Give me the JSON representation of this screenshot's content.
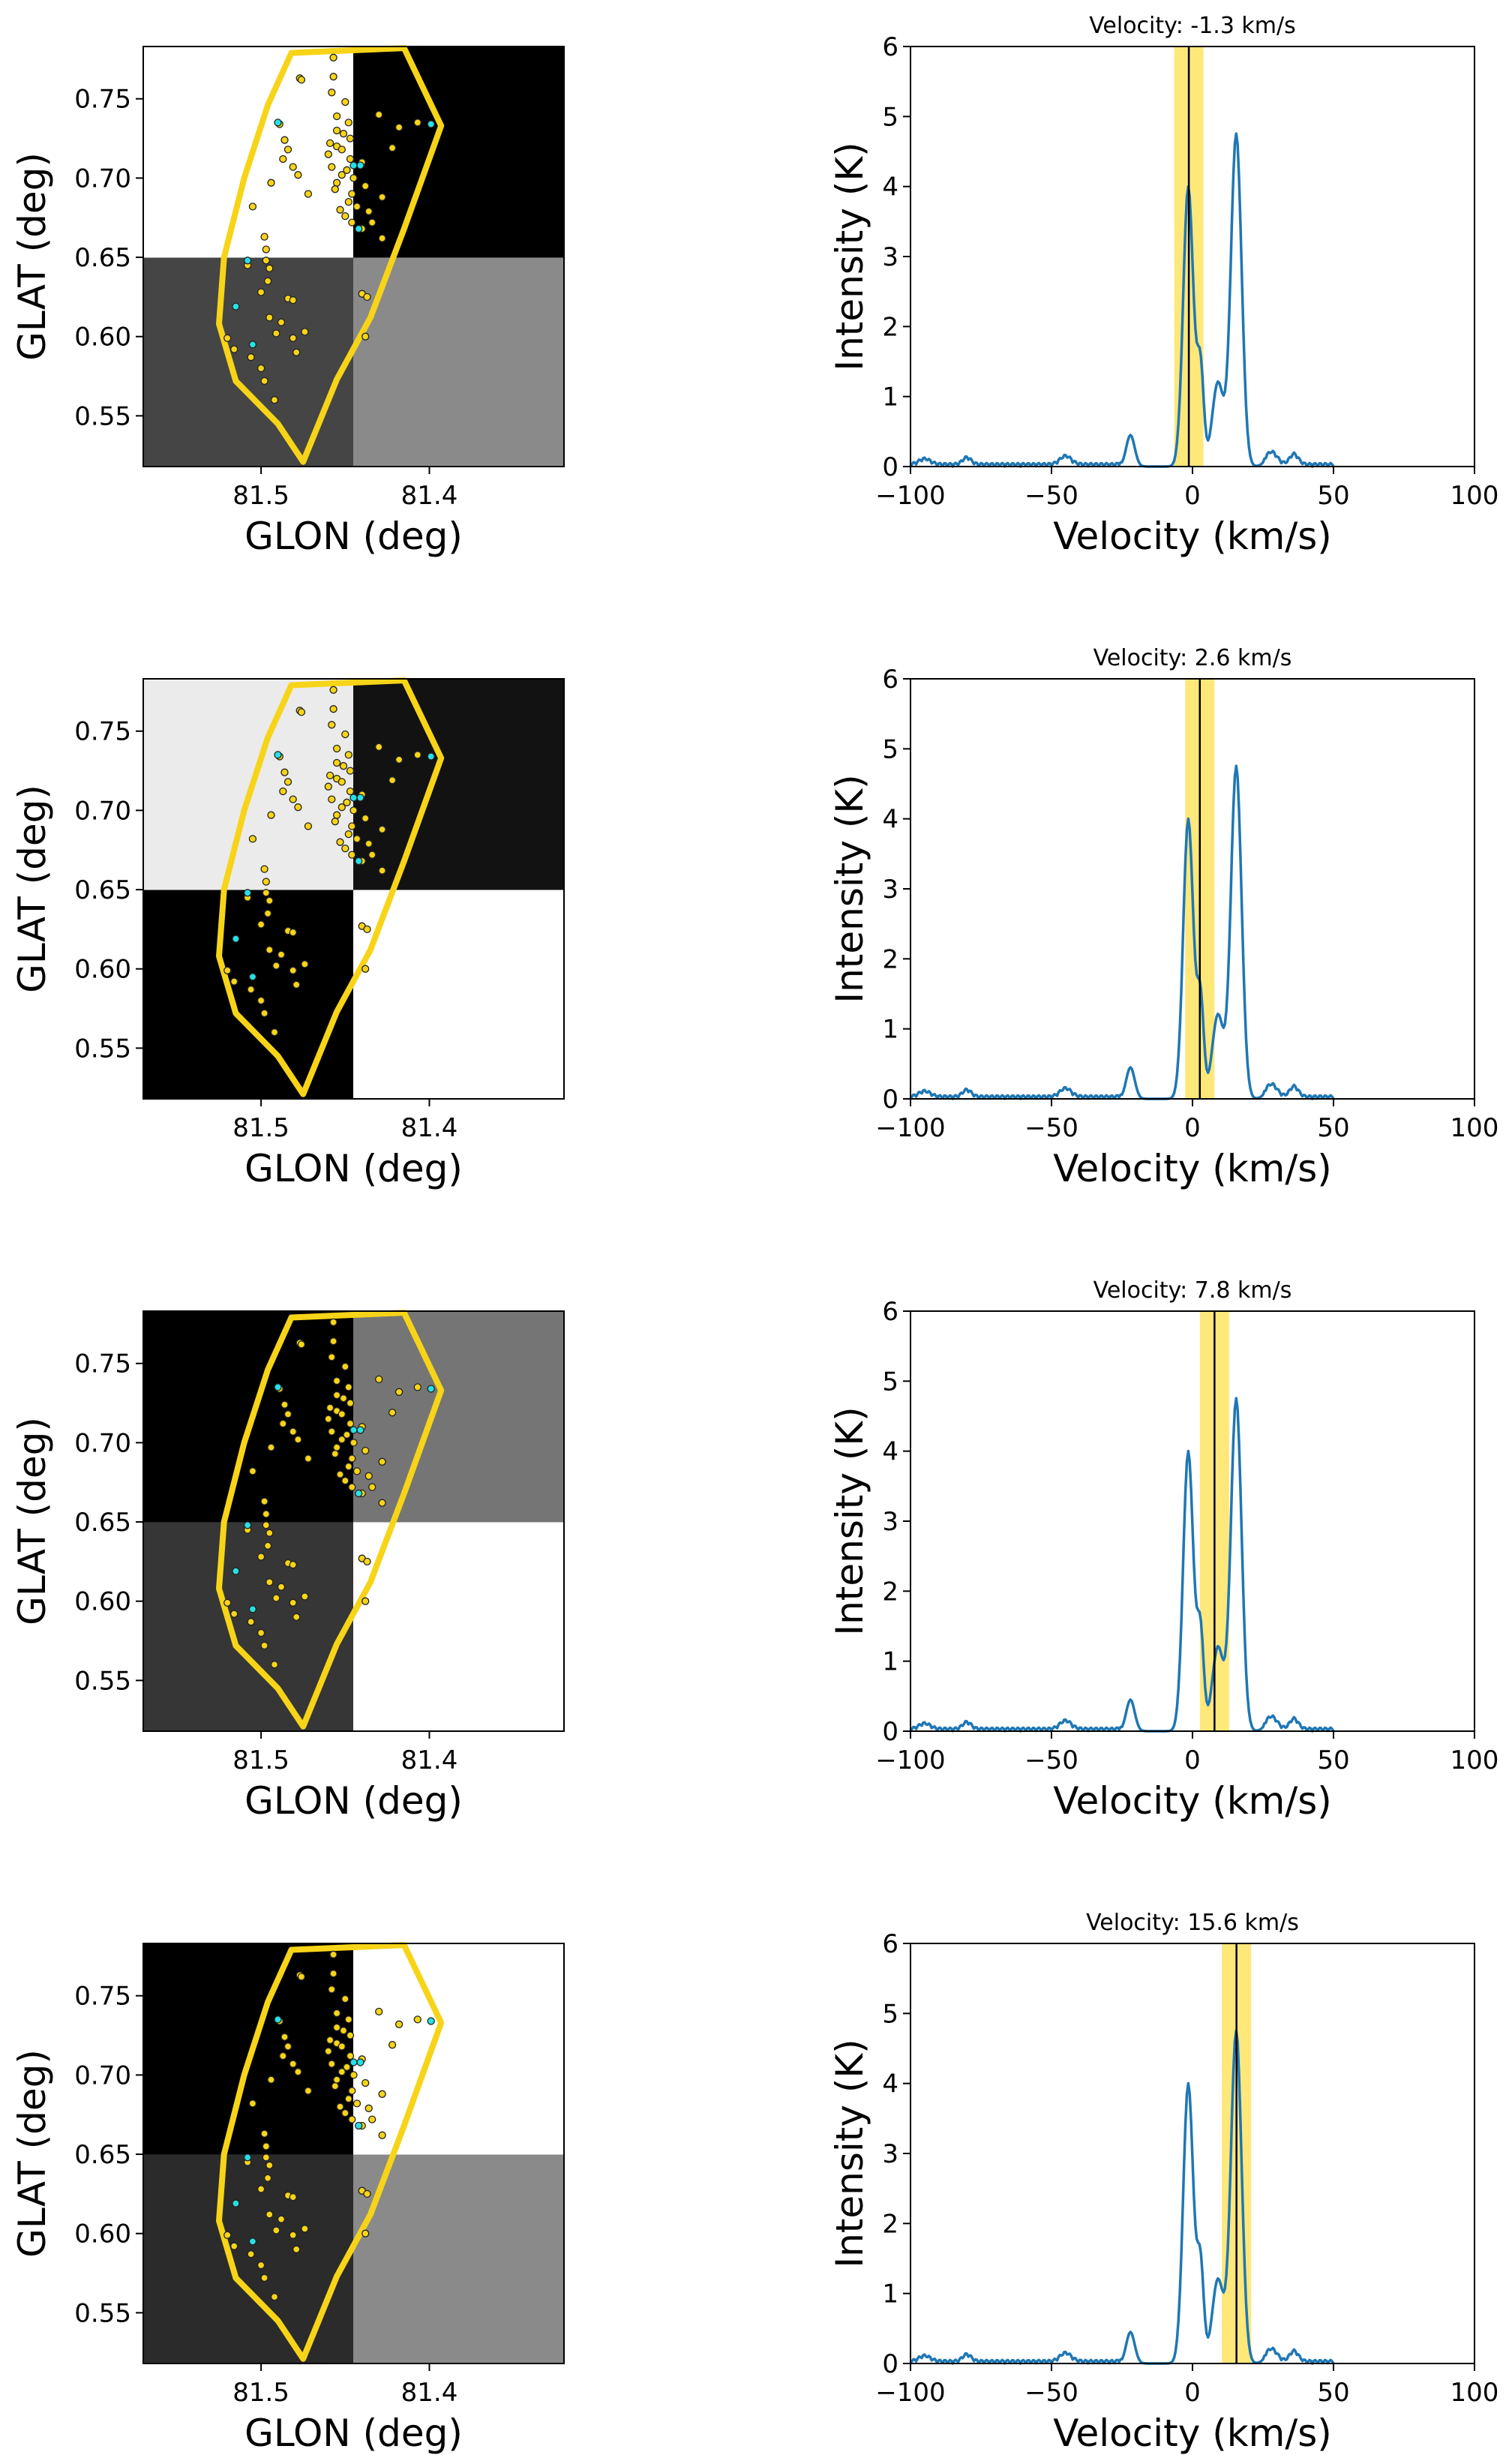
{
  "figure": {
    "title": "",
    "rows": 4
  },
  "colors": {
    "yellow": "#f7d417",
    "band": "#ffe66b",
    "spectrum": "#1f77b4",
    "cyan": "#28e0e6",
    "vline": "#000000"
  },
  "chart_data": [
    {
      "type": "heatmap",
      "panel": 1,
      "title": "",
      "xlabel": "GLON (deg)",
      "ylabel": "GLAT (deg)",
      "xlim": [
        81.57,
        81.32
      ],
      "ylim": [
        0.518,
        0.783
      ],
      "xticks": [
        "81.5",
        "81.4"
      ],
      "yticks": [
        "0.55",
        "0.60",
        "0.65",
        "0.70",
        "0.75"
      ],
      "cells": [
        [
          0.27,
          0.54
        ],
        [
          1.0,
          0.0
        ]
      ]
    },
    {
      "type": "line",
      "panel": 1,
      "title": "Velocity: -1.3 km/s",
      "xlabel": "Velocity (km/s)",
      "ylabel": "Intensity (K)",
      "xlim": [
        -100,
        100
      ],
      "ylim": [
        0,
        6
      ],
      "xticks": [
        "−100",
        "−50",
        "0",
        "50",
        "100"
      ],
      "yticks": [
        "0",
        "1",
        "2",
        "3",
        "4",
        "5",
        "6"
      ],
      "velocity": -1.3,
      "band": [
        -6.5,
        3.9
      ]
    },
    {
      "type": "heatmap",
      "panel": 2,
      "title": "",
      "xlabel": "GLON (deg)",
      "ylabel": "GLAT (deg)",
      "xlim": [
        81.57,
        81.32
      ],
      "ylim": [
        0.518,
        0.783
      ],
      "xticks": [
        "81.5",
        "81.4"
      ],
      "yticks": [
        "0.55",
        "0.60",
        "0.65",
        "0.70",
        "0.75"
      ],
      "cells": [
        [
          0.0,
          1.0
        ],
        [
          0.92,
          0.07
        ]
      ]
    },
    {
      "type": "line",
      "panel": 2,
      "title": "Velocity: 2.6 km/s",
      "xlabel": "Velocity (km/s)",
      "ylabel": "Intensity (K)",
      "xlim": [
        -100,
        100
      ],
      "ylim": [
        0,
        6
      ],
      "xticks": [
        "−100",
        "−50",
        "0",
        "50",
        "100"
      ],
      "yticks": [
        "0",
        "1",
        "2",
        "3",
        "4",
        "5",
        "6"
      ],
      "velocity": 2.6,
      "band": [
        -2.6,
        7.8
      ]
    },
    {
      "type": "heatmap",
      "panel": 3,
      "title": "",
      "xlabel": "GLON (deg)",
      "ylabel": "GLAT (deg)",
      "xlim": [
        81.57,
        81.32
      ],
      "ylim": [
        0.518,
        0.783
      ],
      "xticks": [
        "81.5",
        "81.4"
      ],
      "yticks": [
        "0.55",
        "0.60",
        "0.65",
        "0.70",
        "0.75"
      ],
      "cells": [
        [
          0.21,
          1.0
        ],
        [
          0.0,
          0.46
        ]
      ]
    },
    {
      "type": "line",
      "panel": 3,
      "title": "Velocity: 7.8 km/s",
      "xlabel": "Velocity (km/s)",
      "ylabel": "Intensity (K)",
      "xlim": [
        -100,
        100
      ],
      "ylim": [
        0,
        6
      ],
      "xticks": [
        "−100",
        "−50",
        "0",
        "50",
        "100"
      ],
      "yticks": [
        "0",
        "1",
        "2",
        "3",
        "4",
        "5",
        "6"
      ],
      "velocity": 7.8,
      "band": [
        2.6,
        13.0
      ]
    },
    {
      "type": "heatmap",
      "panel": 4,
      "title": "",
      "xlabel": "GLON (deg)",
      "ylabel": "GLAT (deg)",
      "xlim": [
        81.57,
        81.32
      ],
      "ylim": [
        0.518,
        0.783
      ],
      "xticks": [
        "81.5",
        "81.4"
      ],
      "yticks": [
        "0.55",
        "0.60",
        "0.65",
        "0.70",
        "0.75"
      ],
      "cells": [
        [
          0.17,
          0.54
        ],
        [
          0.0,
          1.0
        ]
      ]
    },
    {
      "type": "line",
      "panel": 4,
      "title": "Velocity: 15.6 km/s",
      "xlabel": "Velocity (km/s)",
      "ylabel": "Intensity (K)",
      "xlim": [
        -100,
        100
      ],
      "ylim": [
        0,
        6
      ],
      "xticks": [
        "−100",
        "−50",
        "0",
        "50",
        "100"
      ],
      "yticks": [
        "0",
        "1",
        "2",
        "3",
        "4",
        "5",
        "6"
      ],
      "velocity": 15.6,
      "band": [
        10.4,
        20.8
      ]
    }
  ],
  "region": {
    "polygon_glon_glat": [
      [
        81.482,
        0.779
      ],
      [
        81.415,
        0.782
      ],
      [
        81.393,
        0.733
      ],
      [
        81.415,
        0.668
      ],
      [
        81.435,
        0.612
      ],
      [
        81.455,
        0.573
      ],
      [
        81.475,
        0.521
      ],
      [
        81.49,
        0.545
      ],
      [
        81.515,
        0.572
      ],
      [
        81.525,
        0.608
      ],
      [
        81.522,
        0.65
      ],
      [
        81.51,
        0.7
      ],
      [
        81.496,
        0.746
      ]
    ]
  },
  "sources": {
    "yellow": [
      [
        81.477,
        0.763
      ],
      [
        81.476,
        0.762
      ],
      [
        81.489,
        0.734
      ],
      [
        81.486,
        0.724
      ],
      [
        81.484,
        0.718
      ],
      [
        81.487,
        0.712
      ],
      [
        81.481,
        0.707
      ],
      [
        81.478,
        0.702
      ],
      [
        81.494,
        0.697
      ],
      [
        81.472,
        0.69
      ],
      [
        81.505,
        0.682
      ],
      [
        81.508,
        0.645
      ],
      [
        81.498,
        0.663
      ],
      [
        81.497,
        0.655
      ],
      [
        81.497,
        0.648
      ],
      [
        81.495,
        0.643
      ],
      [
        81.496,
        0.635
      ],
      [
        81.5,
        0.628
      ],
      [
        81.484,
        0.624
      ],
      [
        81.481,
        0.623
      ],
      [
        81.495,
        0.612
      ],
      [
        81.488,
        0.609
      ],
      [
        81.474,
        0.603
      ],
      [
        81.491,
        0.602
      ],
      [
        81.52,
        0.599
      ],
      [
        81.516,
        0.592
      ],
      [
        81.506,
        0.587
      ],
      [
        81.479,
        0.59
      ],
      [
        81.5,
        0.58
      ],
      [
        81.492,
        0.56
      ],
      [
        81.498,
        0.572
      ],
      [
        81.481,
        0.599
      ],
      [
        81.457,
        0.776
      ],
      [
        81.457,
        0.764
      ],
      [
        81.458,
        0.754
      ],
      [
        81.45,
        0.748
      ],
      [
        81.455,
        0.739
      ],
      [
        81.448,
        0.735
      ],
      [
        81.43,
        0.74
      ],
      [
        81.407,
        0.735
      ],
      [
        81.418,
        0.732
      ],
      [
        81.455,
        0.73
      ],
      [
        81.451,
        0.728
      ],
      [
        81.447,
        0.725
      ],
      [
        81.459,
        0.722
      ],
      [
        81.455,
        0.72
      ],
      [
        81.452,
        0.718
      ],
      [
        81.46,
        0.715
      ],
      [
        81.447,
        0.712
      ],
      [
        81.44,
        0.71
      ],
      [
        81.458,
        0.707
      ],
      [
        81.449,
        0.705
      ],
      [
        81.452,
        0.702
      ],
      [
        81.445,
        0.7
      ],
      [
        81.455,
        0.697
      ],
      [
        81.438,
        0.695
      ],
      [
        81.456,
        0.693
      ],
      [
        81.446,
        0.69
      ],
      [
        81.428,
        0.688
      ],
      [
        81.448,
        0.685
      ],
      [
        81.443,
        0.682
      ],
      [
        81.453,
        0.68
      ],
      [
        81.436,
        0.679
      ],
      [
        81.45,
        0.676
      ],
      [
        81.446,
        0.672
      ],
      [
        81.44,
        0.668
      ],
      [
        81.434,
        0.672
      ],
      [
        81.428,
        0.662
      ],
      [
        81.44,
        0.627
      ],
      [
        81.437,
        0.625
      ],
      [
        81.438,
        0.6
      ],
      [
        81.422,
        0.719
      ]
    ],
    "cyan": [
      [
        81.49,
        0.735
      ],
      [
        81.508,
        0.648
      ],
      [
        81.515,
        0.619
      ],
      [
        81.505,
        0.595
      ],
      [
        81.441,
        0.708
      ],
      [
        81.445,
        0.708
      ],
      [
        81.442,
        0.668
      ],
      [
        81.399,
        0.734
      ]
    ]
  }
}
